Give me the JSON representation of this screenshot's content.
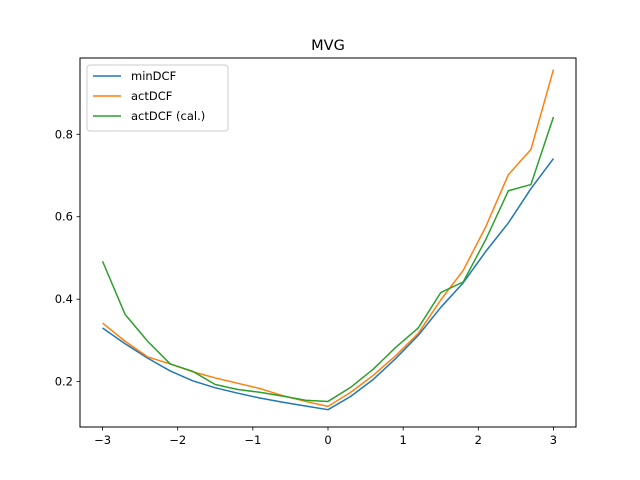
{
  "chart_data": {
    "type": "line",
    "title": "MVG",
    "xlabel": "",
    "ylabel": "",
    "xlim": [
      -3.3,
      3.3
    ],
    "ylim": [
      0.09,
      0.985
    ],
    "xticks": [
      -3,
      -2,
      -1,
      0,
      1,
      2,
      3
    ],
    "xtick_labels": [
      "−3",
      "−2",
      "−1",
      "0",
      "1",
      "2",
      "3"
    ],
    "yticks": [
      0.2,
      0.4,
      0.6,
      0.8
    ],
    "ytick_labels": [
      "0.2",
      "0.4",
      "0.6",
      "0.8"
    ],
    "grid": false,
    "legend_position": "top-left",
    "x": [
      -3.0,
      -2.7,
      -2.4,
      -2.1,
      -1.8,
      -1.5,
      -1.2,
      -0.9,
      -0.6,
      -0.3,
      0.0,
      0.3,
      0.6,
      0.9,
      1.2,
      1.5,
      1.8,
      2.1,
      2.4,
      2.7,
      3.0
    ],
    "series": [
      {
        "name": "minDCF",
        "color": "#1f77b4",
        "values": [
          0.33,
          0.292,
          0.257,
          0.226,
          0.202,
          0.185,
          0.172,
          0.16,
          0.15,
          0.141,
          0.132,
          0.164,
          0.205,
          0.256,
          0.312,
          0.38,
          0.44,
          0.516,
          0.585,
          0.668,
          0.741
        ]
      },
      {
        "name": "actDCF",
        "color": "#ff7f0e",
        "values": [
          0.342,
          0.298,
          0.26,
          0.243,
          0.224,
          0.209,
          0.196,
          0.183,
          0.166,
          0.152,
          0.14,
          0.174,
          0.215,
          0.263,
          0.317,
          0.398,
          0.47,
          0.576,
          0.702,
          0.763,
          0.957
        ]
      },
      {
        "name": "actDCF (cal.)",
        "color": "#2ca02c",
        "values": [
          0.492,
          0.363,
          0.298,
          0.243,
          0.225,
          0.193,
          0.181,
          0.174,
          0.165,
          0.155,
          0.152,
          0.186,
          0.23,
          0.283,
          0.33,
          0.416,
          0.442,
          0.545,
          0.663,
          0.678,
          0.842
        ]
      }
    ]
  }
}
